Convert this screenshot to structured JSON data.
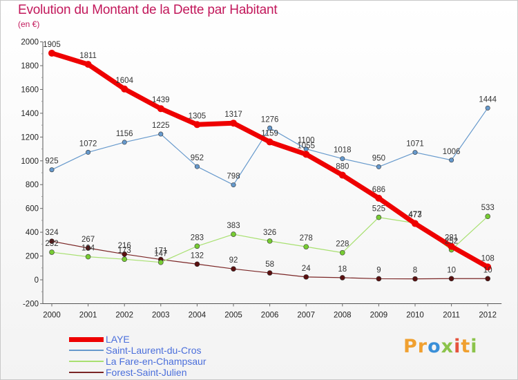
{
  "page": {
    "title": "Evolution du Montant de la Dette par Habitant",
    "subtitle": "(en €)",
    "brand": [
      "Pr",
      "o",
      "x",
      "i",
      "t",
      "i"
    ]
  },
  "chart_data": {
    "type": "line",
    "title": "Evolution du Montant de la Dette par Habitant",
    "subtitle": "(en €)",
    "xlabel": "",
    "ylabel": "",
    "x": [
      2000,
      2001,
      2002,
      2003,
      2004,
      2005,
      2006,
      2007,
      2008,
      2009,
      2010,
      2011,
      2012
    ],
    "ylim": [
      -200,
      2000
    ],
    "yticks": [
      -200,
      0,
      200,
      400,
      600,
      800,
      1000,
      1200,
      1400,
      1600,
      1800,
      2000
    ],
    "grid": false,
    "legend_position": "bottom-left",
    "series": [
      {
        "name": "LAYE",
        "color": "#ee0000",
        "values": [
          1905,
          1811,
          1604,
          1439,
          1305,
          1317,
          1159,
          1055,
          880,
          686,
          473,
          281,
          108
        ]
      },
      {
        "name": "Saint-Laurent-du-Cros",
        "color": "#6699cc",
        "values": [
          925,
          1072,
          1156,
          1225,
          952,
          798,
          1276,
          1100,
          1018,
          950,
          1071,
          1006,
          1444
        ]
      },
      {
        "name": "La Fare-en-Champsaur",
        "color": "#99dd66",
        "values": [
          232,
          194,
          173,
          147,
          283,
          383,
          326,
          278,
          228,
          525,
          477,
          252,
          533
        ]
      },
      {
        "name": "Forest-Saint-Julien",
        "color": "#7a1f1f",
        "values": [
          324,
          267,
          216,
          171,
          132,
          92,
          58,
          24,
          18,
          9,
          8,
          10,
          10
        ]
      }
    ]
  }
}
